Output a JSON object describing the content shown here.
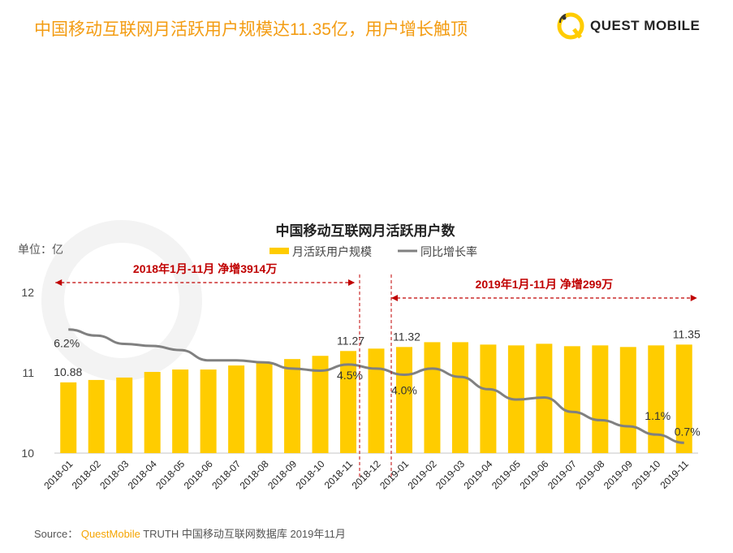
{
  "header": {
    "title": "中国移动互联网月活跃用户规模达11.35亿，用户增长触顶",
    "logo_text": "QUEST MOBILE"
  },
  "watermark": "QUEST MOBILE",
  "footer": {
    "label": "Source：",
    "brand": "QuestMobile",
    "rest": "TRUTH 中国移动互联网数据库 2019年11月"
  },
  "colors": {
    "bar": "#FFCC00",
    "line": "#808080",
    "annotation": "#C00000",
    "title": "#F39C12"
  },
  "chart_data": {
    "type": "bar",
    "title": "中国移动互联网月活跃用户数",
    "unit_label": "单位：亿",
    "legend": [
      "月活跃用户规模",
      "同比增长率"
    ],
    "legend_position": "top-center",
    "categories": [
      "2018-01",
      "2018-02",
      "2018-03",
      "2018-04",
      "2018-05",
      "2018-06",
      "2018-07",
      "2018-08",
      "2018-09",
      "2018-10",
      "2018-11",
      "2018-12",
      "2019-01",
      "2019-02",
      "2019-03",
      "2019-04",
      "2019-05",
      "2019-06",
      "2019-07",
      "2019-08",
      "2019-09",
      "2019-10",
      "2019-11"
    ],
    "series": [
      {
        "name": "月活跃用户规模",
        "type": "bar",
        "values": [
          10.88,
          10.91,
          10.94,
          11.01,
          11.04,
          11.04,
          11.09,
          11.13,
          11.17,
          11.21,
          11.27,
          11.3,
          11.32,
          11.38,
          11.38,
          11.35,
          11.34,
          11.36,
          11.33,
          11.34,
          11.32,
          11.34,
          11.35
        ]
      },
      {
        "name": "同比增长率",
        "type": "line",
        "unit": "%",
        "values": [
          6.2,
          5.9,
          5.5,
          5.4,
          5.2,
          4.7,
          4.7,
          4.6,
          4.3,
          4.2,
          4.5,
          4.3,
          4.0,
          4.3,
          3.9,
          3.3,
          2.8,
          2.9,
          2.2,
          1.8,
          1.5,
          1.1,
          0.7
        ]
      }
    ],
    "ylim": [
      10,
      12
    ],
    "yticks": [
      "10",
      "11",
      "12"
    ],
    "y2lim": [
      0.2,
      8.0
    ],
    "bar_labels": [
      {
        "index": 0,
        "text": "10.88"
      },
      {
        "index": 10,
        "text": "11.27"
      },
      {
        "index": 12,
        "text": "11.32"
      },
      {
        "index": 22,
        "text": "11.35"
      }
    ],
    "line_labels": [
      {
        "index": 0,
        "text": "6.2%"
      },
      {
        "index": 10,
        "text": "4.5%"
      },
      {
        "index": 12,
        "text": "4.0%"
      },
      {
        "index": 21,
        "text": "1.1%"
      },
      {
        "index": 22,
        "text": "0.7%"
      }
    ],
    "annotations": [
      {
        "text": "2018年1月-11月  净增3914万",
        "from": 0,
        "to": 10
      },
      {
        "text": "2019年1月-11月  净增299万",
        "from": 12,
        "to": 22
      }
    ]
  }
}
